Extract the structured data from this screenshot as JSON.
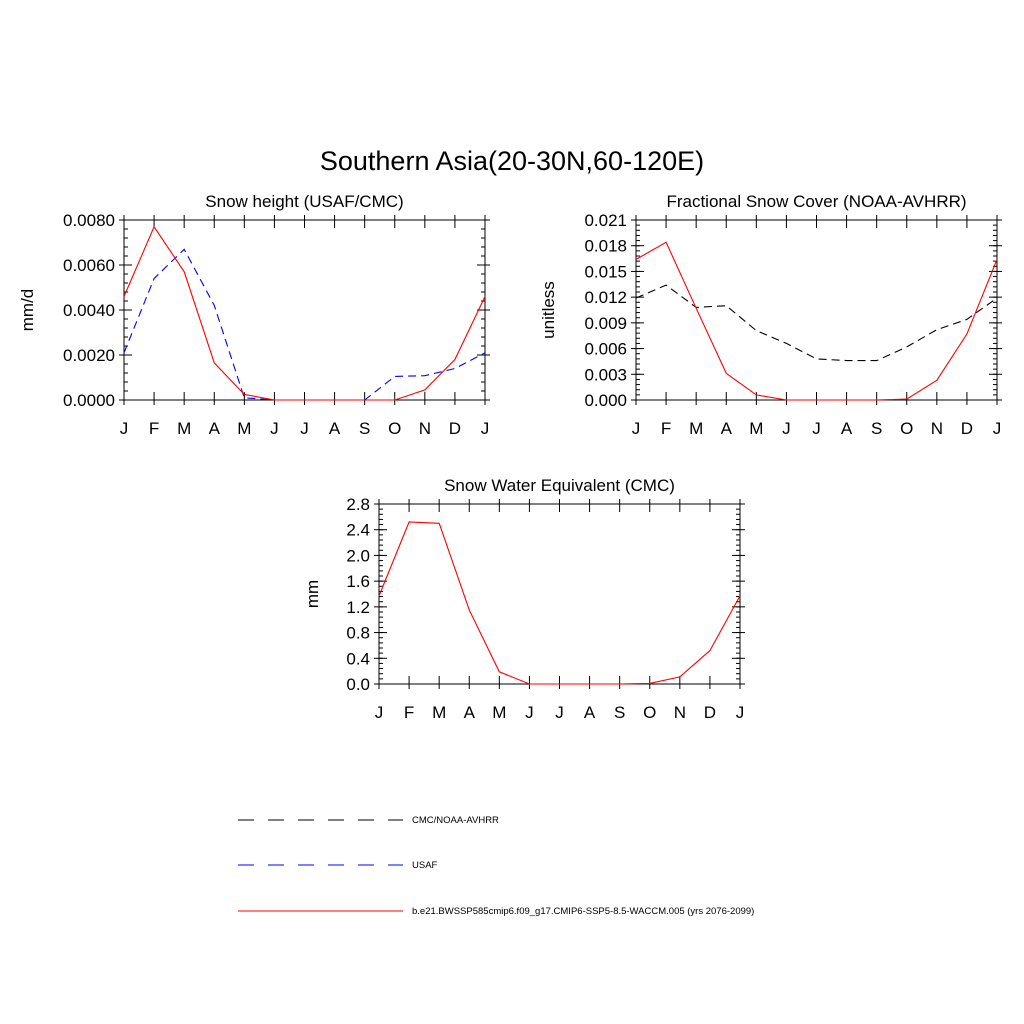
{
  "figure": {
    "title": "Southern Asia(20-30N,60-120E)"
  },
  "months": [
    "J",
    "F",
    "M",
    "A",
    "M",
    "J",
    "J",
    "A",
    "S",
    "O",
    "N",
    "D",
    "J"
  ],
  "colors": {
    "obs_black": "#000000",
    "usaf_blue": "#0000ff",
    "model_red": "#ff0000"
  },
  "legend": {
    "items": [
      {
        "id": "obs",
        "label": "CMC/NOAA-AVHRR",
        "color": "#000000",
        "dash": "dashed-long"
      },
      {
        "id": "usaf",
        "label": "USAF",
        "color": "#0000ff",
        "dash": "dashed-long"
      },
      {
        "id": "model",
        "label": "b.e21.BWSSP585cmip6.f09_g17.CMIP6-SSP5-8.5-WACCM.005 (yrs 2076-2099)",
        "color": "#ff0000",
        "dash": "solid"
      }
    ]
  },
  "chart_data": [
    {
      "type": "line",
      "title": "Snow height (USAF/CMC)",
      "xlabel": "",
      "ylabel": "mm/d",
      "categories": [
        "J",
        "F",
        "M",
        "A",
        "M",
        "J",
        "J",
        "A",
        "S",
        "O",
        "N",
        "D",
        "J"
      ],
      "ylim": [
        0,
        0.008
      ],
      "yticks": [
        "0.0000",
        "0.0020",
        "0.0040",
        "0.0060",
        "0.0080"
      ],
      "ytick_values": [
        0,
        0.002,
        0.004,
        0.006,
        0.008
      ],
      "minor_step": 0.0004,
      "grid": false,
      "series": [
        {
          "legend_ref": "obs",
          "color": "#000000",
          "dash": "dashed",
          "values": [
            0,
            0,
            0,
            0,
            0,
            0,
            0,
            0,
            0,
            0,
            0,
            0,
            0
          ]
        },
        {
          "legend_ref": "usaf",
          "color": "#0000ff",
          "dash": "dashed",
          "values": [
            0.0021,
            0.0054,
            0.0067,
            0.0042,
            0.0001,
            0,
            0,
            0,
            0,
            0.00105,
            0.00108,
            0.0014,
            0.0021
          ]
        },
        {
          "legend_ref": "model",
          "color": "#ff0000",
          "dash": "solid",
          "values": [
            0.0046,
            0.0077,
            0.0057,
            0.00165,
            0.00025,
            0,
            0,
            0,
            0,
            0,
            0.00045,
            0.0018,
            0.0046
          ]
        }
      ]
    },
    {
      "type": "line",
      "title": "Fractional Snow Cover (NOAA-AVHRR)",
      "xlabel": "",
      "ylabel": "unitless",
      "categories": [
        "J",
        "F",
        "M",
        "A",
        "M",
        "J",
        "J",
        "A",
        "S",
        "O",
        "N",
        "D",
        "J"
      ],
      "ylim": [
        0,
        0.021
      ],
      "yticks": [
        "0.000",
        "0.003",
        "0.006",
        "0.009",
        "0.012",
        "0.015",
        "0.018",
        "0.021"
      ],
      "ytick_values": [
        0,
        0.003,
        0.006,
        0.009,
        0.012,
        0.015,
        0.018,
        0.021
      ],
      "minor_step": 0.0006,
      "grid": false,
      "series": [
        {
          "legend_ref": "obs",
          "color": "#000000",
          "dash": "dashed",
          "values": [
            0.0119,
            0.0134,
            0.0108,
            0.011,
            0.0081,
            0.0066,
            0.0048,
            0.0046,
            0.0046,
            0.0062,
            0.0082,
            0.0094,
            0.0119
          ]
        },
        {
          "legend_ref": "model",
          "color": "#ff0000",
          "dash": "solid",
          "values": [
            0.0164,
            0.0184,
            0.0107,
            0.0031,
            0.0006,
            0,
            0,
            0,
            0,
            0.0001,
            0.0023,
            0.0077,
            0.0164
          ]
        }
      ]
    },
    {
      "type": "line",
      "title": "Snow Water Equivalent (CMC)",
      "xlabel": "",
      "ylabel": "mm",
      "categories": [
        "J",
        "F",
        "M",
        "A",
        "M",
        "J",
        "J",
        "A",
        "S",
        "O",
        "N",
        "D",
        "J"
      ],
      "ylim": [
        0,
        2.8
      ],
      "yticks": [
        "0.0",
        "0.4",
        "0.8",
        "1.2",
        "1.6",
        "2.0",
        "2.4",
        "2.8"
      ],
      "ytick_values": [
        0,
        0.4,
        0.8,
        1.2,
        1.6,
        2.0,
        2.4,
        2.8
      ],
      "minor_step": 0.08,
      "grid": false,
      "series": [
        {
          "legend_ref": "obs",
          "color": "#000000",
          "dash": "dashed",
          "values": [
            0,
            0,
            0,
            0,
            0,
            0,
            0,
            0,
            0,
            0,
            0,
            0,
            0
          ]
        },
        {
          "legend_ref": "model",
          "color": "#ff0000",
          "dash": "solid",
          "values": [
            1.37,
            2.52,
            2.5,
            1.15,
            0.19,
            0,
            0,
            0,
            0,
            0.01,
            0.11,
            0.52,
            1.37
          ]
        }
      ]
    }
  ]
}
